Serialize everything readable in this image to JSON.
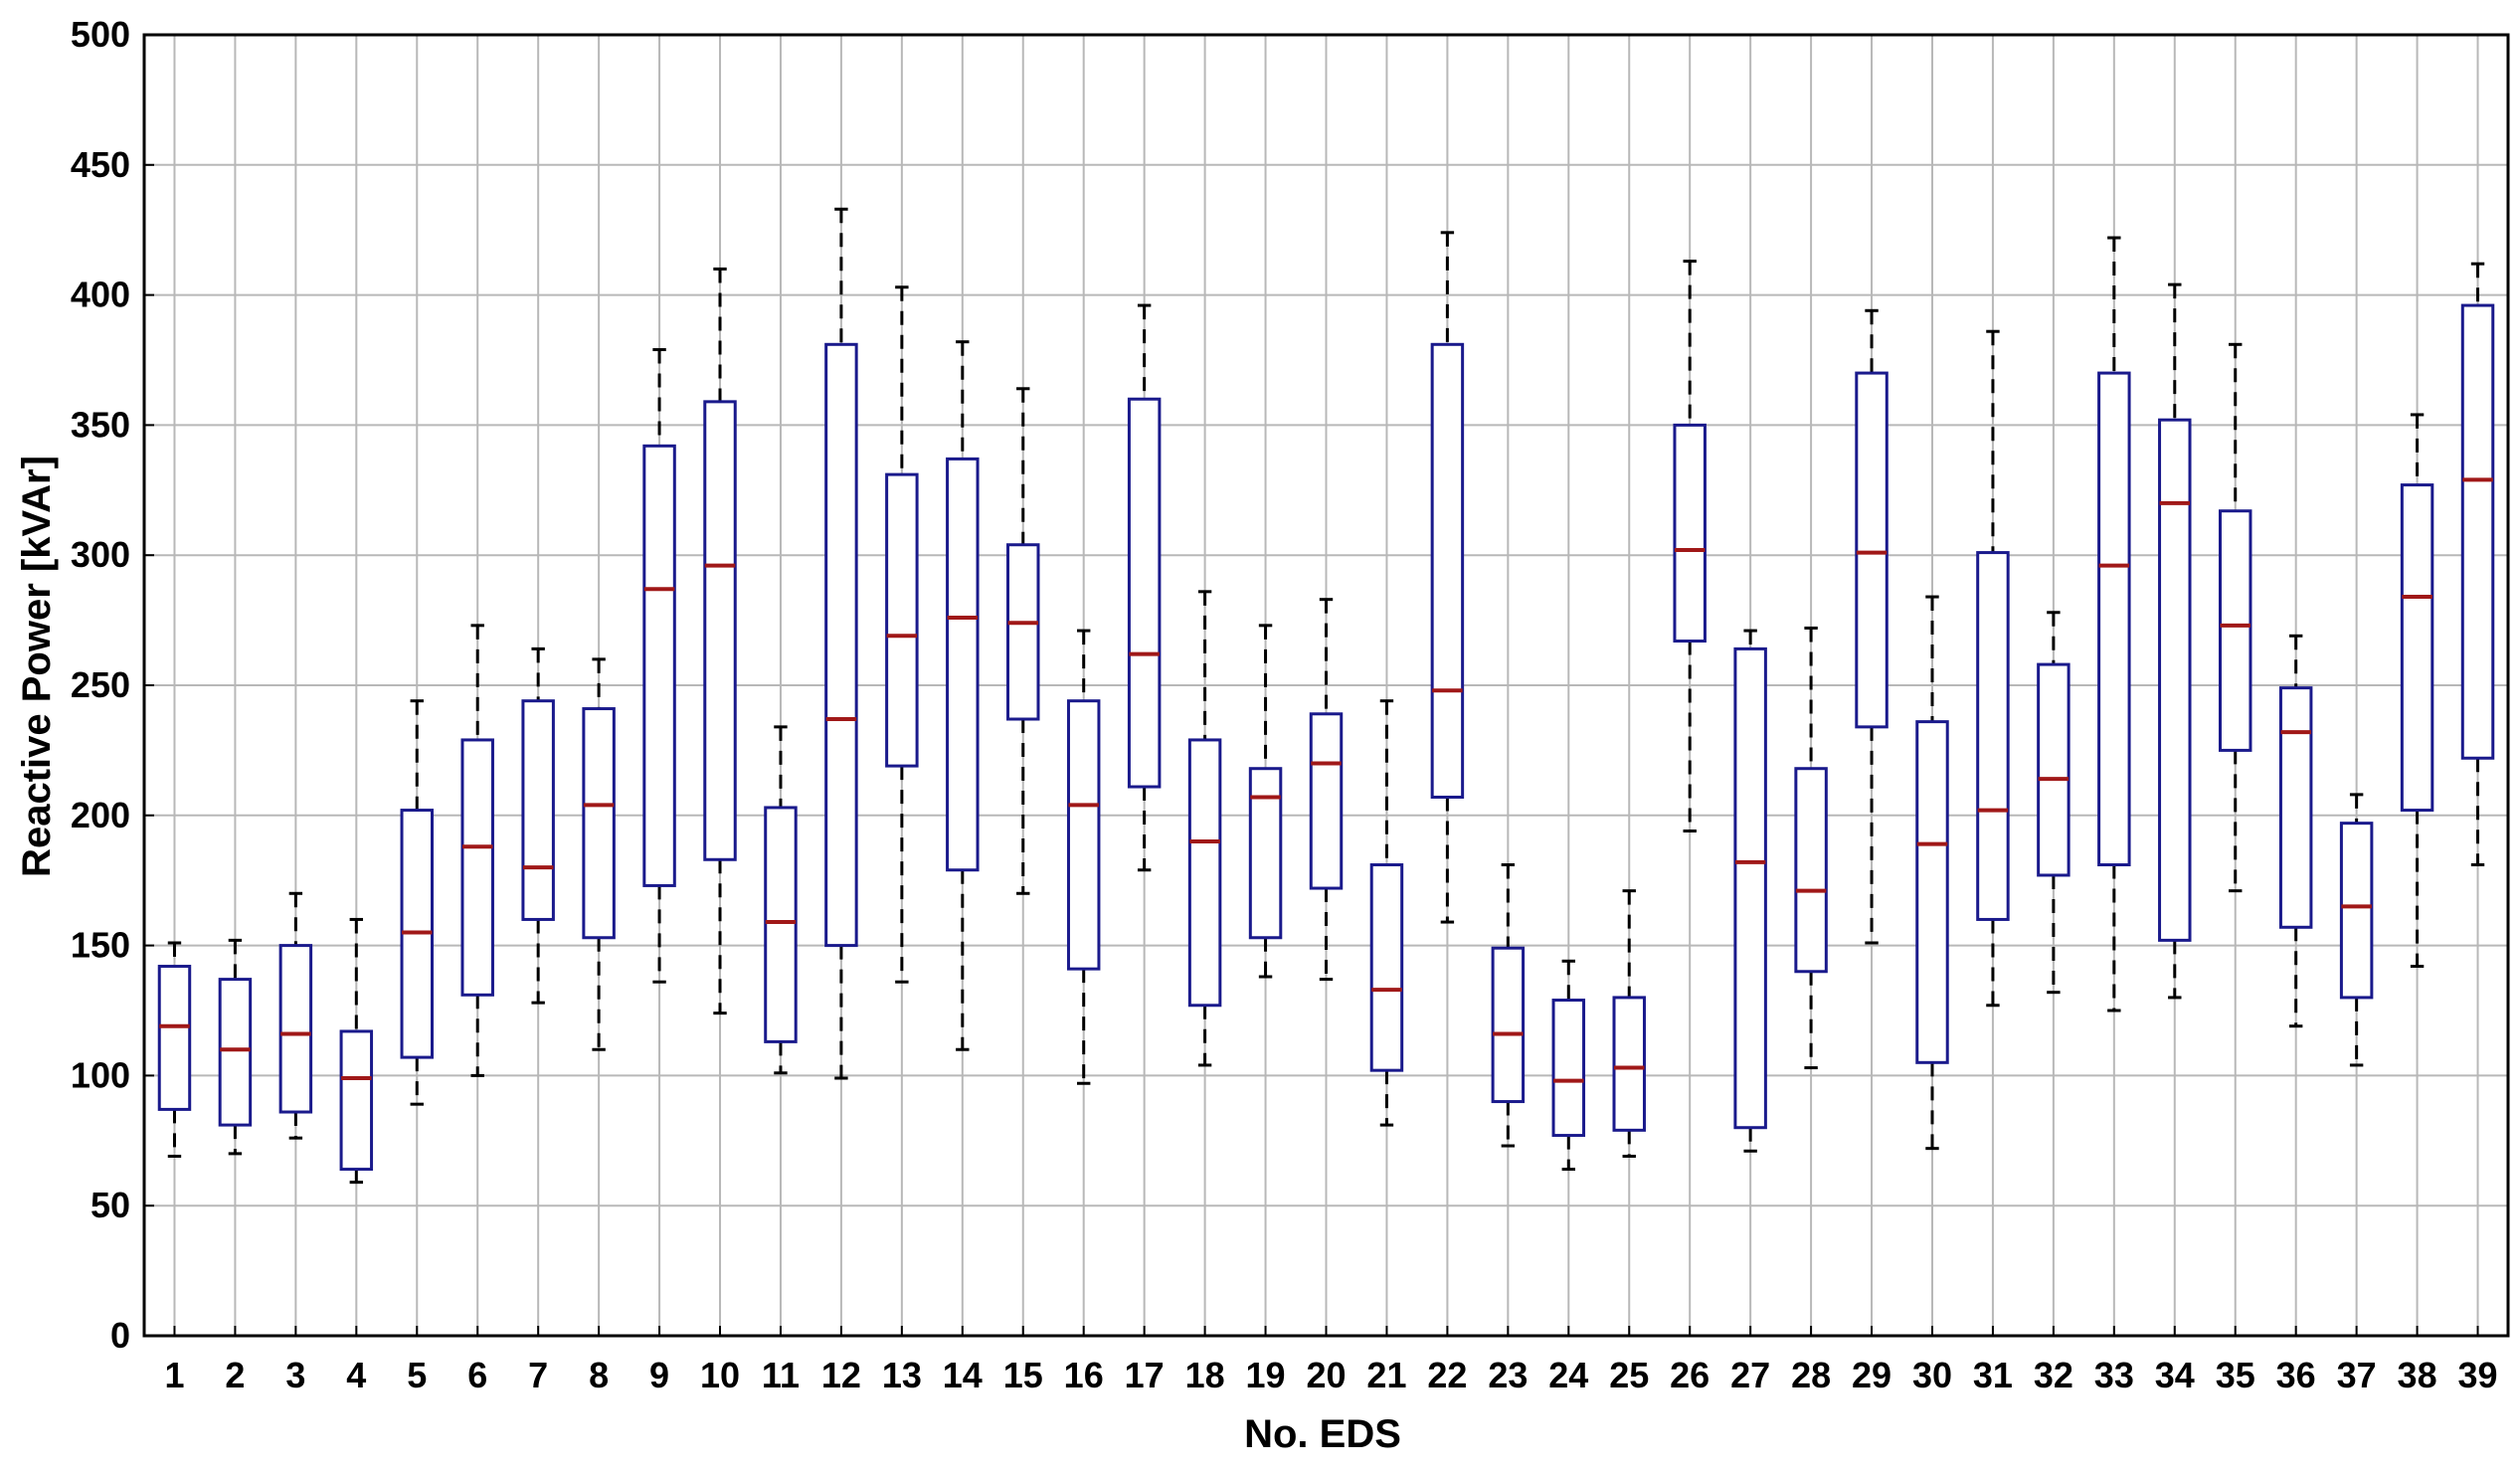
{
  "chart_data": {
    "type": "box",
    "xlabel": "No. EDS",
    "ylabel": "Reactive Power [kVAr]",
    "ylim": [
      0,
      500
    ],
    "yticks": [
      0,
      50,
      100,
      150,
      200,
      250,
      300,
      350,
      400,
      450,
      500
    ],
    "grid": true,
    "colors": {
      "box": "#1a1a8c",
      "median": "#a01818",
      "whisker": "#000000",
      "grid": "#b8b8b8"
    },
    "categories": [
      "1",
      "2",
      "3",
      "4",
      "5",
      "6",
      "7",
      "8",
      "9",
      "10",
      "11",
      "12",
      "13",
      "14",
      "15",
      "16",
      "17",
      "18",
      "19",
      "20",
      "21",
      "22",
      "23",
      "24",
      "25",
      "26",
      "27",
      "28",
      "29",
      "30",
      "31",
      "32",
      "33",
      "34",
      "35",
      "36",
      "37",
      "38",
      "39"
    ],
    "boxes": [
      {
        "min": 69,
        "q1": 87,
        "median": 119,
        "q3": 142,
        "max": 151
      },
      {
        "min": 70,
        "q1": 81,
        "median": 110,
        "q3": 137,
        "max": 152
      },
      {
        "min": 76,
        "q1": 86,
        "median": 116,
        "q3": 150,
        "max": 170
      },
      {
        "min": 59,
        "q1": 64,
        "median": 99,
        "q3": 117,
        "max": 160
      },
      {
        "min": 89,
        "q1": 107,
        "median": 155,
        "q3": 202,
        "max": 244
      },
      {
        "min": 100,
        "q1": 131,
        "median": 188,
        "q3": 229,
        "max": 273
      },
      {
        "min": 128,
        "q1": 160,
        "median": 180,
        "q3": 244,
        "max": 264
      },
      {
        "min": 110,
        "q1": 153,
        "median": 204,
        "q3": 241,
        "max": 260
      },
      {
        "min": 136,
        "q1": 173,
        "median": 287,
        "q3": 342,
        "max": 379
      },
      {
        "min": 124,
        "q1": 183,
        "median": 296,
        "q3": 359,
        "max": 410
      },
      {
        "min": 101,
        "q1": 113,
        "median": 159,
        "q3": 203,
        "max": 234
      },
      {
        "min": 99,
        "q1": 150,
        "median": 237,
        "q3": 381,
        "max": 433
      },
      {
        "min": 136,
        "q1": 219,
        "median": 269,
        "q3": 331,
        "max": 403
      },
      {
        "min": 110,
        "q1": 179,
        "median": 276,
        "q3": 337,
        "max": 382
      },
      {
        "min": 170,
        "q1": 237,
        "median": 274,
        "q3": 304,
        "max": 364
      },
      {
        "min": 97,
        "q1": 141,
        "median": 204,
        "q3": 244,
        "max": 271
      },
      {
        "min": 179,
        "q1": 211,
        "median": 262,
        "q3": 360,
        "max": 396
      },
      {
        "min": 104,
        "q1": 127,
        "median": 190,
        "q3": 229,
        "max": 286
      },
      {
        "min": 138,
        "q1": 153,
        "median": 207,
        "q3": 218,
        "max": 273
      },
      {
        "min": 137,
        "q1": 172,
        "median": 220,
        "q3": 239,
        "max": 283
      },
      {
        "min": 81,
        "q1": 102,
        "median": 133,
        "q3": 181,
        "max": 244
      },
      {
        "min": 159,
        "q1": 207,
        "median": 248,
        "q3": 381,
        "max": 424
      },
      {
        "min": 73,
        "q1": 90,
        "median": 116,
        "q3": 149,
        "max": 181
      },
      {
        "min": 64,
        "q1": 77,
        "median": 98,
        "q3": 129,
        "max": 144
      },
      {
        "min": 69,
        "q1": 79,
        "median": 103,
        "q3": 130,
        "max": 171
      },
      {
        "min": 194,
        "q1": 267,
        "median": 302,
        "q3": 350,
        "max": 413
      },
      {
        "min": 71,
        "q1": 80,
        "median": 182,
        "q3": 264,
        "max": 271
      },
      {
        "min": 103,
        "q1": 140,
        "median": 171,
        "q3": 218,
        "max": 272
      },
      {
        "min": 151,
        "q1": 234,
        "median": 301,
        "q3": 370,
        "max": 394
      },
      {
        "min": 72,
        "q1": 105,
        "median": 189,
        "q3": 236,
        "max": 284
      },
      {
        "min": 127,
        "q1": 160,
        "median": 202,
        "q3": 301,
        "max": 386
      },
      {
        "min": 132,
        "q1": 177,
        "median": 214,
        "q3": 258,
        "max": 278
      },
      {
        "min": 125,
        "q1": 181,
        "median": 296,
        "q3": 370,
        "max": 422
      },
      {
        "min": 130,
        "q1": 152,
        "median": 320,
        "q3": 352,
        "max": 404
      },
      {
        "min": 171,
        "q1": 225,
        "median": 273,
        "q3": 317,
        "max": 381
      },
      {
        "min": 119,
        "q1": 157,
        "median": 232,
        "q3": 249,
        "max": 269
      },
      {
        "min": 104,
        "q1": 130,
        "median": 165,
        "q3": 197,
        "max": 208
      },
      {
        "min": 142,
        "q1": 202,
        "median": 284,
        "q3": 327,
        "max": 354
      },
      {
        "min": 181,
        "q1": 222,
        "median": 329,
        "q3": 396,
        "max": 412
      }
    ]
  }
}
